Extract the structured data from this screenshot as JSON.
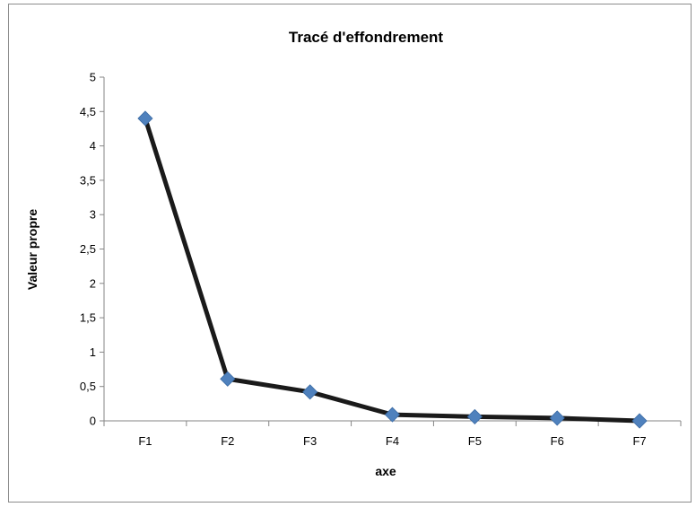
{
  "chart_data": {
    "type": "line",
    "title": "Tracé d'effondrement",
    "xlabel": "axe",
    "ylabel": "Valeur propre",
    "categories": [
      "F1",
      "F2",
      "F3",
      "F4",
      "F5",
      "F6",
      "F7"
    ],
    "values": [
      4.4,
      0.61,
      0.42,
      0.09,
      0.06,
      0.04,
      0.0
    ],
    "ylim": [
      0,
      5
    ],
    "yticks": [
      "0",
      "0,5",
      "1",
      "1,5",
      "2",
      "2,5",
      "3",
      "3,5",
      "4",
      "4,5",
      "5"
    ],
    "grid": false,
    "legend": "none",
    "colors": {
      "line": "#1a1a1a",
      "marker": "#4f81bd",
      "axis": "#868686"
    }
  }
}
